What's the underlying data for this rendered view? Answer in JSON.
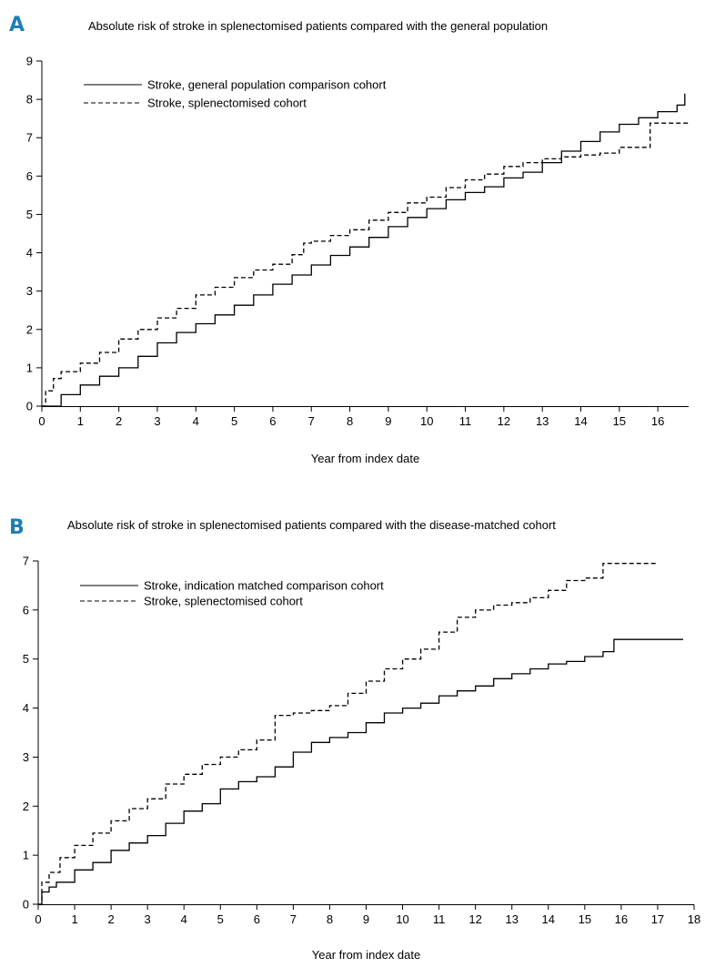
{
  "chart_data": [
    {
      "type": "line",
      "panel": "A",
      "title": "Absolute risk of stroke in splenectomised patients compared with the general population",
      "xlabel": "Year from index date",
      "ylabel": "",
      "xlim": [
        0,
        16.8
      ],
      "ylim": [
        0,
        9
      ],
      "xticks": [
        "0",
        "1",
        "2",
        "3",
        "4",
        "5",
        "6",
        "7",
        "8",
        "9",
        "10",
        "11",
        "12",
        "13",
        "14",
        "15",
        "16"
      ],
      "yticks": [
        "0",
        "1",
        "2",
        "3",
        "4",
        "5",
        "6",
        "7",
        "8",
        "9"
      ],
      "legend_position": "top-left",
      "series": [
        {
          "name": "Stroke, general population comparison cohort",
          "style": "solid",
          "color": "#000000",
          "step": true,
          "x": [
            0,
            0.5,
            1,
            1.5,
            2,
            2.5,
            3,
            3.5,
            4,
            4.5,
            5,
            5.5,
            6,
            6.5,
            7,
            7.5,
            8,
            8.5,
            9,
            9.5,
            10,
            10.5,
            11,
            11.5,
            12,
            12.5,
            13,
            13.5,
            14,
            14.5,
            15,
            15.5,
            16,
            16.5,
            16.7
          ],
          "y": [
            0,
            0.3,
            0.55,
            0.78,
            1.0,
            1.3,
            1.65,
            1.92,
            2.15,
            2.38,
            2.63,
            2.9,
            3.18,
            3.42,
            3.68,
            3.93,
            4.15,
            4.4,
            4.68,
            4.92,
            5.15,
            5.38,
            5.57,
            5.72,
            5.95,
            6.1,
            6.35,
            6.65,
            6.9,
            7.15,
            7.35,
            7.52,
            7.68,
            7.85,
            8.15
          ]
        },
        {
          "name": "Stroke, splenectomised cohort",
          "style": "dashed",
          "color": "#000000",
          "step": true,
          "x": [
            0,
            0.1,
            0.3,
            0.5,
            1,
            1.5,
            2,
            2.5,
            3,
            3.5,
            4,
            4.5,
            5,
            5.5,
            6,
            6.5,
            6.8,
            7,
            7.5,
            8,
            8.5,
            9,
            9.5,
            10,
            10.5,
            11,
            11.5,
            12,
            12.5,
            13,
            13.5,
            14,
            14.5,
            15,
            15.5,
            15.8,
            16,
            16.5,
            16.8
          ],
          "y": [
            0,
            0.4,
            0.72,
            0.9,
            1.12,
            1.4,
            1.75,
            2.0,
            2.3,
            2.55,
            2.9,
            3.1,
            3.35,
            3.55,
            3.7,
            3.95,
            4.25,
            4.3,
            4.45,
            4.6,
            4.85,
            5.05,
            5.3,
            5.45,
            5.7,
            5.9,
            6.05,
            6.25,
            6.35,
            6.45,
            6.5,
            6.55,
            6.6,
            6.75,
            6.75,
            7.38,
            7.38,
            7.38,
            7.38
          ]
        }
      ]
    },
    {
      "type": "line",
      "panel": "B",
      "title": "Absolute risk of stroke in splenectomised patients compared with the disease-matched cohort",
      "xlabel": "Year from index date",
      "ylabel": "",
      "xlim": [
        0,
        18
      ],
      "ylim": [
        0,
        7
      ],
      "xticks": [
        "0",
        "1",
        "2",
        "3",
        "4",
        "5",
        "6",
        "7",
        "8",
        "9",
        "10",
        "11",
        "12",
        "13",
        "14",
        "15",
        "16",
        "17",
        "18"
      ],
      "yticks": [
        "0",
        "1",
        "2",
        "3",
        "4",
        "5",
        "6",
        "7"
      ],
      "legend_position": "top-left",
      "series": [
        {
          "name": "Stroke, indication matched comparison cohort",
          "style": "solid",
          "color": "#000000",
          "step": true,
          "x": [
            0,
            0.1,
            0.3,
            0.5,
            1,
            1.5,
            2,
            2.5,
            3,
            3.5,
            4,
            4.5,
            5,
            5.5,
            6,
            6.5,
            7,
            7.5,
            8,
            8.5,
            9,
            9.5,
            10,
            10.5,
            11,
            11.5,
            12,
            12.5,
            13,
            13.5,
            14,
            14.5,
            15,
            15.5,
            15.8,
            16,
            16.5,
            17,
            17.7
          ],
          "y": [
            0,
            0.25,
            0.35,
            0.45,
            0.7,
            0.85,
            1.1,
            1.25,
            1.4,
            1.65,
            1.9,
            2.05,
            2.35,
            2.5,
            2.6,
            2.8,
            3.1,
            3.3,
            3.4,
            3.5,
            3.7,
            3.9,
            4.0,
            4.1,
            4.25,
            4.35,
            4.45,
            4.6,
            4.7,
            4.8,
            4.9,
            4.95,
            5.05,
            5.15,
            5.4,
            5.4,
            5.4,
            5.4,
            5.4
          ]
        },
        {
          "name": "Stroke, splenectomised cohort",
          "style": "dashed",
          "color": "#000000",
          "step": true,
          "x": [
            0,
            0.1,
            0.3,
            0.6,
            1,
            1.5,
            2,
            2.5,
            3,
            3.5,
            4,
            4.5,
            5,
            5.5,
            6,
            6.5,
            7,
            7.5,
            8,
            8.5,
            9,
            9.5,
            10,
            10.5,
            11,
            11.5,
            12,
            12.5,
            13,
            13.5,
            14,
            14.5,
            15,
            15.5,
            16,
            16.5,
            17
          ],
          "y": [
            0,
            0.45,
            0.65,
            0.95,
            1.2,
            1.45,
            1.7,
            1.95,
            2.15,
            2.45,
            2.65,
            2.85,
            3.0,
            3.15,
            3.35,
            3.85,
            3.9,
            3.95,
            4.05,
            4.3,
            4.55,
            4.8,
            5.0,
            5.2,
            5.55,
            5.85,
            6.0,
            6.1,
            6.15,
            6.25,
            6.4,
            6.6,
            6.65,
            6.95,
            6.95,
            6.95,
            6.95
          ]
        }
      ]
    }
  ]
}
